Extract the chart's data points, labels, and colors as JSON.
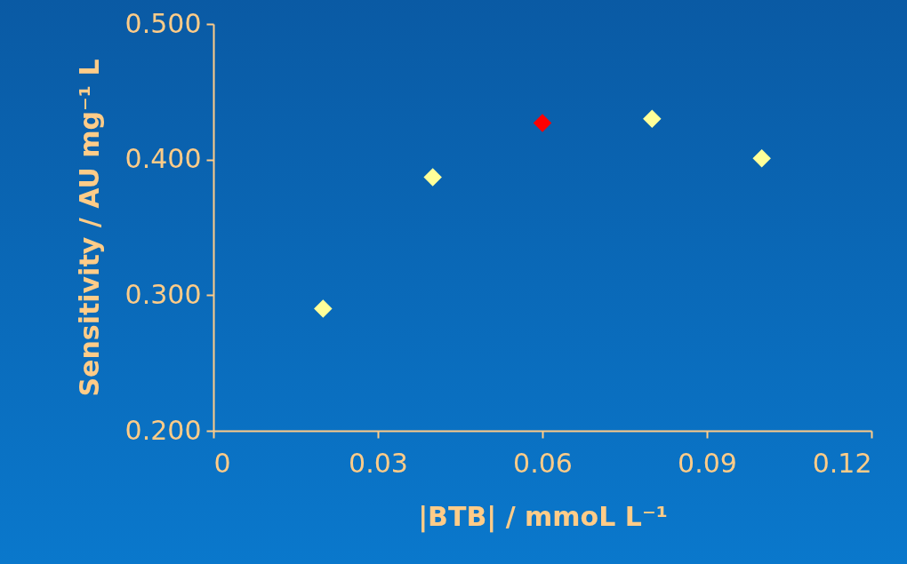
{
  "chart_data": {
    "type": "scatter",
    "xlabel": "|BTB|  / mmoL L⁻¹",
    "ylabel": "Sensitivity / AU mg⁻¹ L",
    "x": [
      0.02,
      0.04,
      0.06,
      0.08,
      0.1
    ],
    "values": [
      0.29,
      0.387,
      0.427,
      0.43,
      0.401
    ],
    "colors": [
      "#ffff99",
      "#ffff99",
      "#ff0000",
      "#ffff99",
      "#ffff99"
    ],
    "marker": "diamond",
    "grid": false,
    "legend": false,
    "xlim": [
      0,
      0.12
    ],
    "xticks": [
      0,
      0.03,
      0.06,
      0.09,
      0.12
    ],
    "ylim": [
      0.2,
      0.5
    ],
    "yticks": [
      {
        "value": 0.2,
        "label": "0.200"
      },
      {
        "value": 0.3,
        "label": "0.300"
      },
      {
        "value": 0.4,
        "label": "0.400"
      },
      {
        "value": 0.5,
        "label": "0.500"
      }
    ]
  }
}
